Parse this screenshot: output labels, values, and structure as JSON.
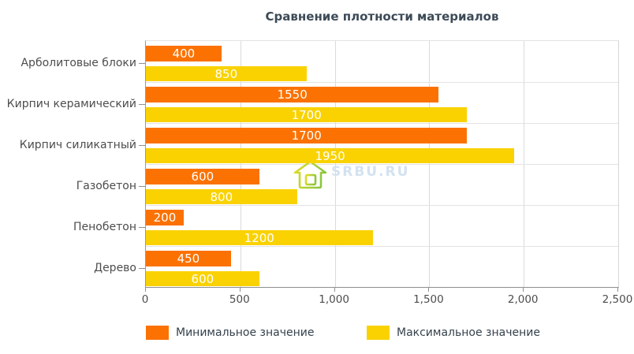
{
  "title": "Сравнение плотности материалов",
  "chart_data": {
    "type": "bar",
    "orientation": "horizontal",
    "title": "Сравнение плотности материалов",
    "categories": [
      "Арболитовые блоки",
      "Кирпич керамический",
      "Кирпич силикатный",
      "Газобетон",
      "Пенобетон",
      "Дерево"
    ],
    "series": [
      {
        "name": "Минимальное значение",
        "color": "#fb7203",
        "values": [
          400,
          1550,
          1700,
          600,
          200,
          450
        ]
      },
      {
        "name": "Максимальное значение",
        "color": "#fad201",
        "values": [
          850,
          1700,
          1950,
          800,
          1200,
          600
        ]
      }
    ],
    "xlim": [
      0,
      2500
    ],
    "x_ticks": [
      "0",
      "500",
      "1,000",
      "1,500",
      "2,000",
      "2,500"
    ],
    "grid": true,
    "legend_position": "bottom",
    "value_labels": "inside-center, white"
  },
  "watermark": {
    "text": "SRBU.RU",
    "icon": "house-icon",
    "accent_green": "#8cc63f",
    "accent_yellow": "#e3df25"
  },
  "colors": {
    "min_bar": "#fb7203",
    "max_bar": "#fad201",
    "title_text": "#3d4a57",
    "axis_text": "#4d4d4d"
  }
}
